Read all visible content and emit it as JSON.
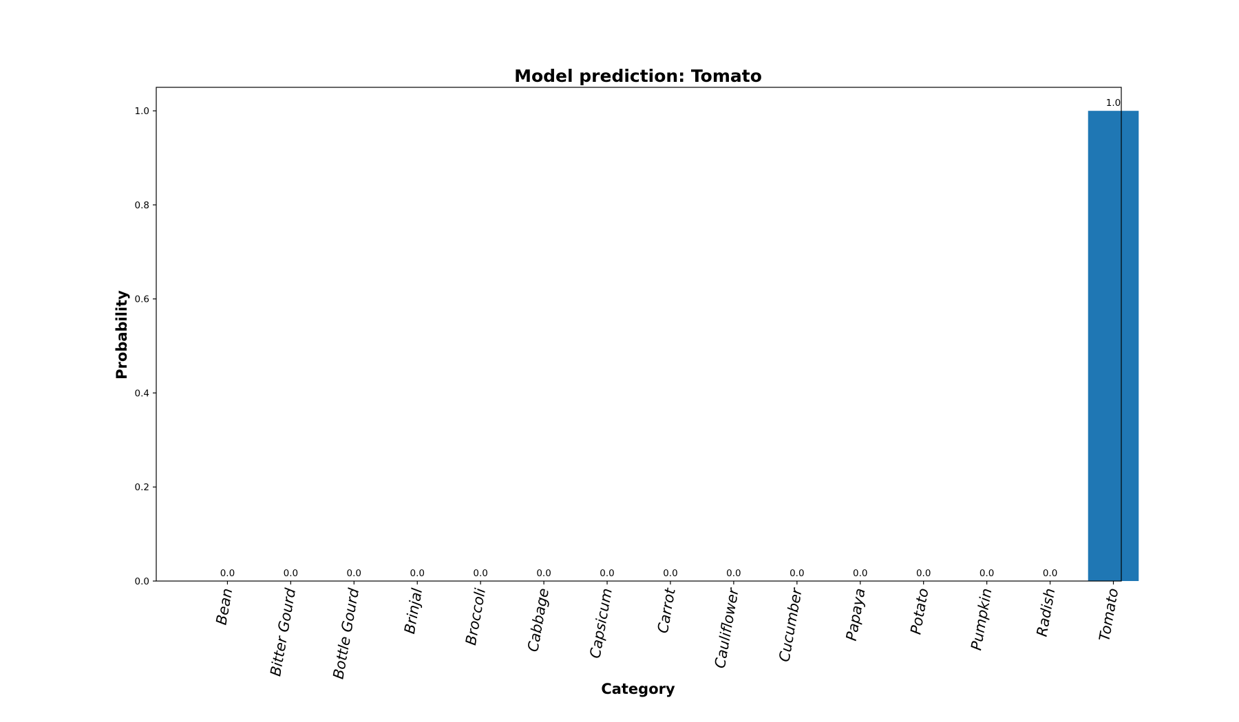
{
  "chart_data": {
    "type": "bar",
    "title": "Model prediction: Tomato",
    "xlabel": "Category",
    "ylabel": "Probability",
    "categories": [
      "Bean",
      "Bitter Gourd",
      "Bottle Gourd",
      "Brinjal",
      "Broccoli",
      "Cabbage",
      "Capsicum",
      "Carrot",
      "Cauliflower",
      "Cucumber",
      "Papaya",
      "Potato",
      "Pumpkin",
      "Radish",
      "Tomato"
    ],
    "values": [
      0.0,
      0.0,
      0.0,
      0.0,
      0.0,
      0.0,
      0.0,
      0.0,
      0.0,
      0.0,
      0.0,
      0.0,
      0.0,
      0.0,
      1.0
    ],
    "value_labels": [
      "0.0",
      "0.0",
      "0.0",
      "0.0",
      "0.0",
      "0.0",
      "0.0",
      "0.0",
      "0.0",
      "0.0",
      "0.0",
      "0.0",
      "0.0",
      "0.0",
      "1.0"
    ],
    "yticks": [
      "0.0",
      "0.2",
      "0.4",
      "0.6",
      "0.8",
      "1.0"
    ],
    "ylim": [
      0,
      1.05
    ],
    "bar_color": "#1f77b4",
    "grid": false,
    "legend": "none"
  }
}
